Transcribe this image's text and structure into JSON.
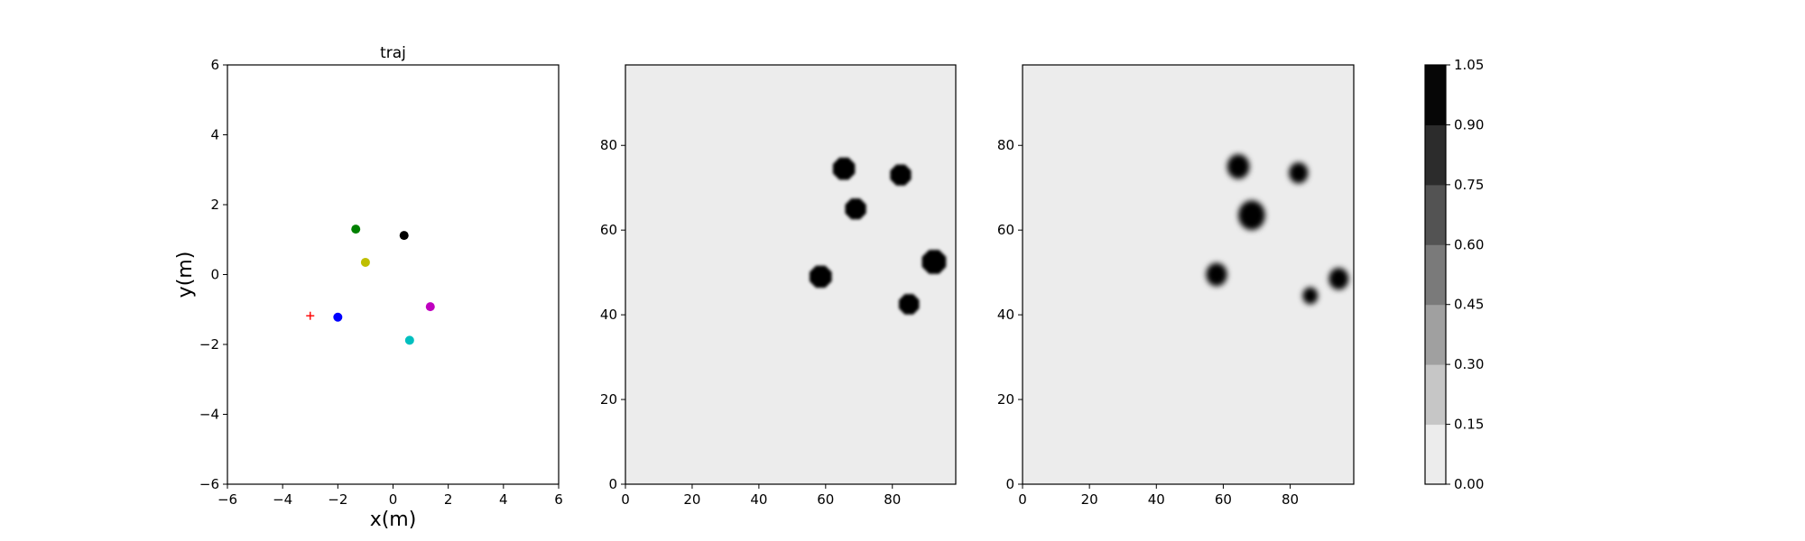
{
  "chart_data": [
    {
      "type": "scatter",
      "title": "traj",
      "xlabel": "x(m)",
      "ylabel": "y(m)",
      "xlim": [
        -6,
        6
      ],
      "ylim": [
        -6,
        6
      ],
      "xticks": [
        -6,
        -4,
        -2,
        0,
        2,
        4,
        6
      ],
      "yticks": [
        -6,
        -4,
        -2,
        0,
        2,
        4,
        6
      ],
      "grid": false,
      "points": [
        {
          "x": -3.0,
          "y": -1.18,
          "marker": "plus",
          "color": "#ff0000"
        },
        {
          "x": -2.0,
          "y": -1.22,
          "marker": "circle",
          "color": "#0000ff"
        },
        {
          "x": -1.35,
          "y": 1.3,
          "marker": "circle",
          "color": "#008000"
        },
        {
          "x": -1.0,
          "y": 0.35,
          "marker": "circle",
          "color": "#bfbf00"
        },
        {
          "x": 0.4,
          "y": 1.12,
          "marker": "circle",
          "color": "#000000"
        },
        {
          "x": 1.35,
          "y": -0.92,
          "marker": "circle",
          "color": "#bf00bf"
        },
        {
          "x": 0.6,
          "y": -1.88,
          "marker": "circle",
          "color": "#00bfbf"
        }
      ]
    },
    {
      "type": "heatmap",
      "title": "",
      "xlim": [
        0,
        99
      ],
      "ylim": [
        0,
        99
      ],
      "xticks": [
        0,
        20,
        40,
        60,
        80
      ],
      "yticks": [
        0,
        20,
        40,
        60,
        80
      ],
      "background_value": 0.05,
      "blobs": [
        {
          "x": 65.5,
          "y": 74.5,
          "r": 3.6,
          "value": 1.0
        },
        {
          "x": 82.5,
          "y": 73,
          "r": 3.4,
          "value": 1.0
        },
        {
          "x": 69,
          "y": 65,
          "r": 3.4,
          "value": 1.0
        },
        {
          "x": 92.5,
          "y": 52.5,
          "r": 3.9,
          "value": 1.0
        },
        {
          "x": 58.5,
          "y": 49,
          "r": 3.6,
          "value": 1.0
        },
        {
          "x": 85,
          "y": 42.5,
          "r": 3.3,
          "value": 1.0
        }
      ]
    },
    {
      "type": "heatmap",
      "title": "",
      "xlim": [
        0,
        99
      ],
      "ylim": [
        0,
        99
      ],
      "xticks": [
        0,
        20,
        40,
        60,
        80
      ],
      "yticks": [
        0,
        20,
        40,
        60,
        80
      ],
      "background_value": 0.05,
      "blobs": [
        {
          "x": 64.5,
          "y": 75,
          "r": 3.5,
          "value": 1.0
        },
        {
          "x": 82.5,
          "y": 73.5,
          "r": 3.0,
          "value": 1.0
        },
        {
          "x": 68.5,
          "y": 63.5,
          "r": 4.2,
          "value": 1.0
        },
        {
          "x": 58,
          "y": 49.5,
          "r": 3.3,
          "value": 1.0
        },
        {
          "x": 94.5,
          "y": 48.5,
          "r": 3.1,
          "value": 1.0
        },
        {
          "x": 86,
          "y": 44.5,
          "r": 2.4,
          "value": 1.0
        }
      ]
    }
  ],
  "colorbar": {
    "ticks": [
      "0.00",
      "0.15",
      "0.30",
      "0.45",
      "0.60",
      "0.75",
      "0.90",
      "1.05"
    ],
    "colors": [
      "#ececec",
      "#c6c6c6",
      "#a0a0a0",
      "#7a7a7a",
      "#535353",
      "#2c2c2c",
      "#060606"
    ]
  }
}
